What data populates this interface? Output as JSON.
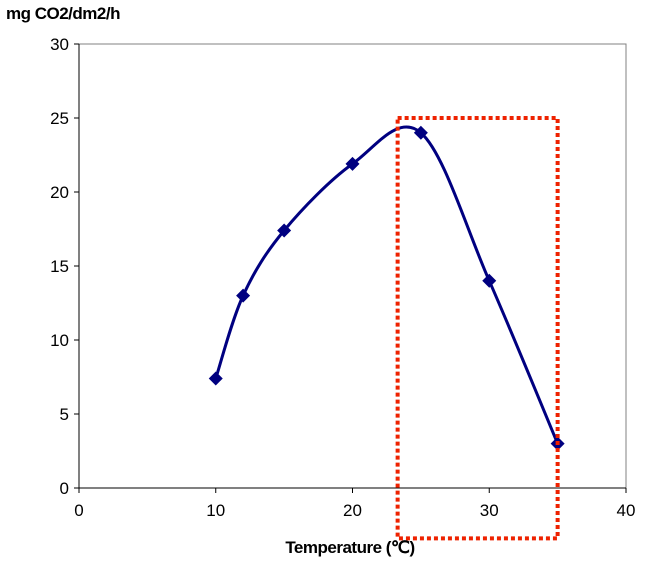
{
  "chart_data": {
    "type": "line",
    "title": "",
    "ylabel": "mg CO2/dm2/h",
    "xlabel": "Temperature (℃)",
    "x": [
      10,
      12,
      15,
      20,
      25,
      30,
      35
    ],
    "series": [
      {
        "values": [
          7.4,
          13.0,
          17.4,
          21.9,
          24.0,
          14.0,
          3.0
        ]
      }
    ],
    "xlim": [
      0,
      40
    ],
    "ylim": [
      0,
      30
    ],
    "xticks": [
      "0",
      "10",
      "20",
      "30",
      "40"
    ],
    "yticks": [
      "0",
      "5",
      "10",
      "15",
      "20",
      "25",
      "30"
    ],
    "grid": false,
    "line_color": "#000080",
    "marker": "diamond",
    "highlight": {
      "x_range": [
        23.3,
        35
      ],
      "y_range": [
        -3.4,
        25
      ],
      "color": "#ee2200",
      "style": "dotted"
    }
  }
}
